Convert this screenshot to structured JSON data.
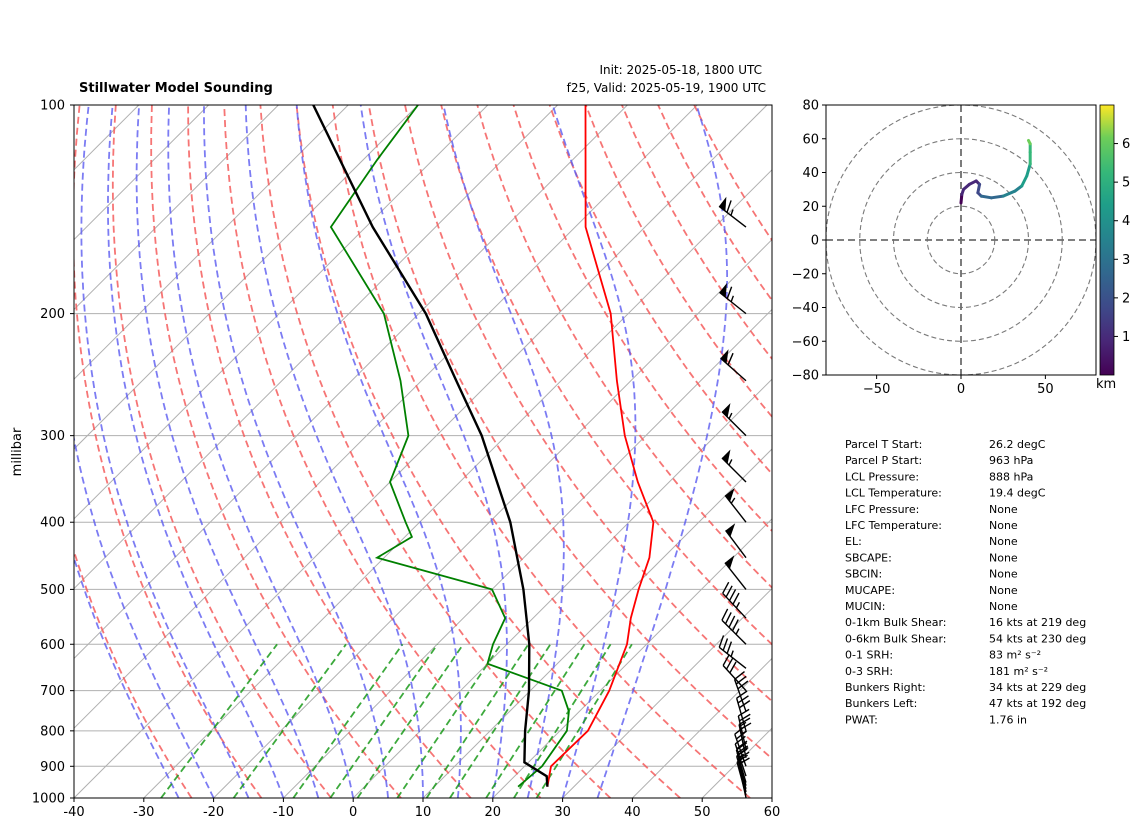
{
  "header": {
    "title": "Stillwater Model Sounding",
    "init": "Init: 2025-05-18, 1800 UTC",
    "valid": "f25, Valid: 2025-05-19, 1900 UTC"
  },
  "chart_data": [
    {
      "type": "line",
      "subtype": "skew-t log-p",
      "ylabel": "millibar",
      "xlabel": "",
      "xlim": [
        -40,
        60
      ],
      "ylim": [
        1000,
        100
      ],
      "y_scale": "log",
      "grid": true,
      "x_ticks": [
        -40,
        -30,
        -20,
        -10,
        0,
        10,
        20,
        30,
        40,
        50,
        60
      ],
      "y_ticks": [
        100,
        200,
        300,
        400,
        500,
        600,
        700,
        800,
        900,
        1000
      ],
      "series": [
        {
          "color": "#ff0000",
          "points": [
            [
              963,
              26.2
            ],
            [
              900,
              23.8
            ],
            [
              800,
              24.0
            ],
            [
              700,
              21.3
            ],
            [
              600,
              17.2
            ],
            [
              550,
              14.0
            ],
            [
              500,
              11.0
            ],
            [
              450,
              8.0
            ],
            [
              400,
              3.5
            ],
            [
              350,
              -4.5
            ],
            [
              300,
              -13.0
            ],
            [
              250,
              -22.0
            ],
            [
              200,
              -32.5
            ],
            [
              150,
              -48.5
            ],
            [
              100,
              -66.0
            ]
          ]
        },
        {
          "color": "#008000",
          "points": [
            [
              963,
              22.0
            ],
            [
              900,
              22.5
            ],
            [
              800,
              21.0
            ],
            [
              750,
              18.5
            ],
            [
              700,
              14.5
            ],
            [
              640,
              0.0
            ],
            [
              600,
              -2.0
            ],
            [
              550,
              -4.0
            ],
            [
              500,
              -10.0
            ],
            [
              450,
              -31.0
            ],
            [
              420,
              -29.0
            ],
            [
              400,
              -32.0
            ],
            [
              350,
              -40.0
            ],
            [
              300,
              -44.0
            ],
            [
              250,
              -53.0
            ],
            [
              200,
              -65.0
            ],
            [
              150,
              -85.0
            ],
            [
              120,
              -88.0
            ],
            [
              100,
              -90.0
            ]
          ]
        },
        {
          "color": "#000000",
          "points": [
            [
              963,
              26.2
            ],
            [
              930,
              24.6
            ],
            [
              888,
              19.4
            ],
            [
              800,
              15.0
            ],
            [
              700,
              9.8
            ],
            [
              600,
              3.2
            ],
            [
              500,
              -5.5
            ],
            [
              400,
              -17.0
            ],
            [
              300,
              -33.5
            ],
            [
              250,
              -45.0
            ],
            [
              200,
              -59.0
            ],
            [
              150,
              -79.0
            ],
            [
              100,
              -105.0
            ]
          ]
        }
      ],
      "dry_adiabats_theta_K": [
        250,
        260,
        270,
        280,
        290,
        300,
        310,
        320,
        330,
        340,
        350,
        360,
        370,
        380,
        390,
        400,
        410,
        420,
        430
      ],
      "moist_adiabats_start_C": [
        -25,
        -20,
        -15,
        -10,
        -5,
        0,
        5,
        10,
        15,
        20,
        25,
        30,
        35
      ],
      "mixing_ratio_lines_gkg": [
        0.4,
        1,
        2,
        3,
        4,
        6,
        8,
        10,
        14,
        18,
        22
      ],
      "wind_barbs": [
        {
          "pressure": 999,
          "u": -2,
          "v": 9
        },
        {
          "pressure": 990,
          "u": -3,
          "v": 11
        },
        {
          "pressure": 980,
          "u": -3,
          "v": 13
        },
        {
          "pressure": 970,
          "u": -4,
          "v": 14
        },
        {
          "pressure": 960,
          "u": -4,
          "v": 15
        },
        {
          "pressure": 950,
          "u": -5,
          "v": 17
        },
        {
          "pressure": 930,
          "u": -6,
          "v": 18
        },
        {
          "pressure": 900,
          "u": -7,
          "v": 20
        },
        {
          "pressure": 875,
          "u": -5,
          "v": 24
        },
        {
          "pressure": 850,
          "u": -6,
          "v": 26
        },
        {
          "pressure": 800,
          "u": -8,
          "v": 28
        },
        {
          "pressure": 750,
          "u": -10,
          "v": 28
        },
        {
          "pressure": 700,
          "u": -20,
          "v": 22
        },
        {
          "pressure": 650,
          "u": -28,
          "v": 22
        },
        {
          "pressure": 600,
          "u": -32,
          "v": 32
        },
        {
          "pressure": 550,
          "u": -32,
          "v": 34
        },
        {
          "pressure": 500,
          "u": -30,
          "v": 38
        },
        {
          "pressure": 450,
          "u": -30,
          "v": 40
        },
        {
          "pressure": 400,
          "u": -35,
          "v": 45
        },
        {
          "pressure": 350,
          "u": -40,
          "v": 40
        },
        {
          "pressure": 300,
          "u": -40,
          "v": 40
        },
        {
          "pressure": 250,
          "u": -45,
          "v": 40
        },
        {
          "pressure": 200,
          "u": -50,
          "v": 40
        },
        {
          "pressure": 150,
          "u": -52,
          "v": 40
        }
      ]
    },
    {
      "type": "line",
      "subtype": "hodograph",
      "xlim": [
        -80,
        80
      ],
      "ylim": [
        -80,
        80
      ],
      "x_ticks": [
        -50,
        0,
        50
      ],
      "y_ticks": [
        -80,
        -60,
        -40,
        -20,
        0,
        20,
        40,
        60,
        80
      ],
      "x_tick_labels": [
        "−50",
        "0",
        "50"
      ],
      "y_tick_labels": [
        "−80",
        "−60",
        "−40",
        "−20",
        "0",
        "20",
        "40",
        "60",
        "80"
      ],
      "rings": [
        20,
        40,
        60,
        80
      ],
      "colorbar": {
        "label": "km",
        "ticks": [
          "1",
          "2",
          "3",
          "4",
          "5",
          "6"
        ],
        "range": [
          0,
          7
        ],
        "colormap": "viridis"
      },
      "trace": [
        {
          "u": 0,
          "v": 22,
          "h": 0.0
        },
        {
          "u": 0.5,
          "v": 27,
          "h": 0.3
        },
        {
          "u": 1.5,
          "v": 30,
          "h": 0.6
        },
        {
          "u": 5,
          "v": 33,
          "h": 0.9
        },
        {
          "u": 9,
          "v": 35,
          "h": 1.1
        },
        {
          "u": 11,
          "v": 33,
          "h": 1.3
        },
        {
          "u": 10,
          "v": 28,
          "h": 1.6
        },
        {
          "u": 12,
          "v": 26,
          "h": 2.0
        },
        {
          "u": 18,
          "v": 25,
          "h": 2.5
        },
        {
          "u": 25,
          "v": 26,
          "h": 3.0
        },
        {
          "u": 32,
          "v": 29,
          "h": 3.5
        },
        {
          "u": 36,
          "v": 32,
          "h": 3.9
        },
        {
          "u": 39,
          "v": 38,
          "h": 4.3
        },
        {
          "u": 41,
          "v": 45,
          "h": 4.7
        },
        {
          "u": 41,
          "v": 52,
          "h": 5.2
        },
        {
          "u": 41,
          "v": 57,
          "h": 5.8
        },
        {
          "u": 40,
          "v": 59,
          "h": 6.5
        }
      ]
    }
  ],
  "parameters": [
    {
      "label": "Parcel T Start:",
      "value": "26.2 degC"
    },
    {
      "label": "Parcel P Start:",
      "value": "963 hPa"
    },
    {
      "label": "LCL Pressure:",
      "value": "888 hPa"
    },
    {
      "label": "LCL Temperature:",
      "value": "19.4 degC"
    },
    {
      "label": "LFC Pressure:",
      "value": "None"
    },
    {
      "label": "LFC Temperature:",
      "value": "None"
    },
    {
      "label": "EL:",
      "value": "None"
    },
    {
      "label": "SBCAPE:",
      "value": "None"
    },
    {
      "label": "SBCIN:",
      "value": "None"
    },
    {
      "label": "MUCAPE:",
      "value": "None"
    },
    {
      "label": "MUCIN:",
      "value": "None"
    },
    {
      "label": "0-1km Bulk Shear:",
      "value": "16 kts at 219 deg"
    },
    {
      "label": "0-6km Bulk Shear:",
      "value": "54 kts at 230 deg"
    },
    {
      "label": "0-1 SRH:",
      "value": "83 m² s⁻²"
    },
    {
      "label": "0-3 SRH:",
      "value": "181 m² s⁻²"
    },
    {
      "label": "Bunkers Right:",
      "value": "34 kts at 229 deg"
    },
    {
      "label": "Bunkers Left:",
      "value": "47 kts at 192 deg"
    },
    {
      "label": "PWAT:",
      "value": "1.76 in"
    }
  ]
}
